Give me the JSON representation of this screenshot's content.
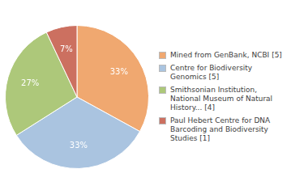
{
  "chart_data": {
    "type": "pie",
    "categories": [
      "Mined from GenBank, NCBI [5]",
      "Centre for Biodiversity\nGenomics [5]",
      "Smithsonian Institution,\nNational Museum of Natural\nHistory... [4]",
      "Paul Hebert Centre for DNA\nBarcoding and Biodiversity\nStudies [1]"
    ],
    "values": [
      33,
      33,
      27,
      7
    ],
    "value_labels": [
      "33%",
      "33%",
      "27%",
      "7%"
    ],
    "colors": [
      "#f0a870",
      "#aac4e0",
      "#adc87a",
      "#cc7060"
    ],
    "data_labels": true,
    "legend": "right"
  }
}
